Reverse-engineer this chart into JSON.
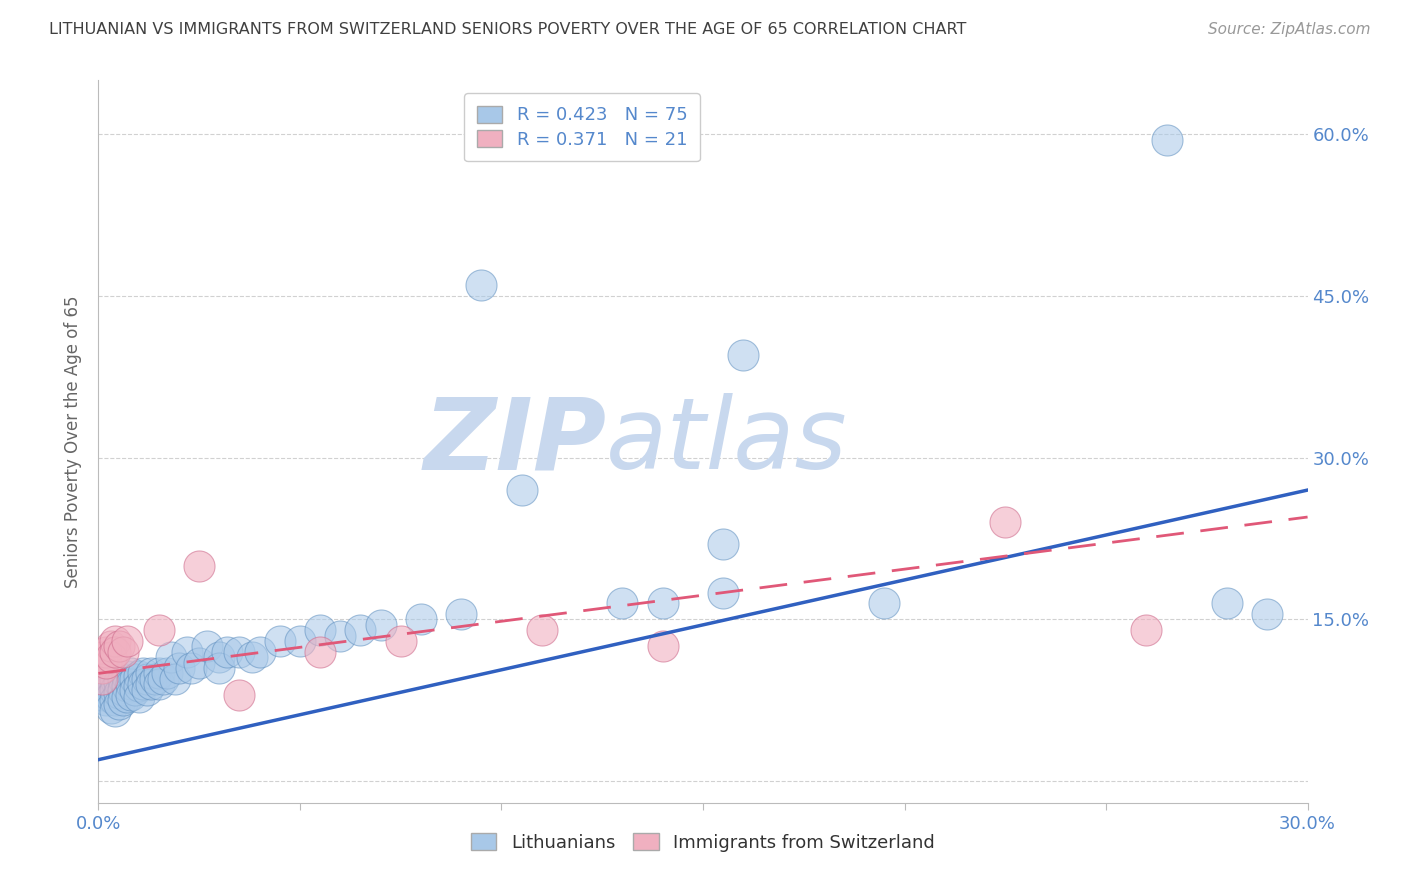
{
  "title": "LITHUANIAN VS IMMIGRANTS FROM SWITZERLAND SENIORS POVERTY OVER THE AGE OF 65 CORRELATION CHART",
  "source_text": "Source: ZipAtlas.com",
  "ylabel": "Seniors Poverty Over the Age of 65",
  "xlim": [
    0.0,
    0.3
  ],
  "ylim": [
    -0.02,
    0.65
  ],
  "background_color": "#ffffff",
  "watermark": "ZIPatlas",
  "watermark_color_zip": "#c8d8ee",
  "watermark_color_atlas": "#c8d8ee",
  "legend_r1": "R = 0.423",
  "legend_n1": "N = 75",
  "legend_r2": "R = 0.371",
  "legend_n2": "N = 21",
  "color_blue": "#a8c8e8",
  "color_pink": "#f0b0c0",
  "color_blue_line": "#3060c0",
  "color_pink_line": "#e05878",
  "color_tick": "#5588cc",
  "color_title": "#404040",
  "color_source": "#999999",
  "blue_line_x0": 0.0,
  "blue_line_y0": 0.02,
  "blue_line_x1": 0.3,
  "blue_line_y1": 0.27,
  "pink_line_x0": 0.0,
  "pink_line_y0": 0.1,
  "pink_line_x1": 0.3,
  "pink_line_y1": 0.245,
  "blue_x": [
    0.001,
    0.001,
    0.001,
    0.002,
    0.002,
    0.002,
    0.002,
    0.003,
    0.003,
    0.003,
    0.003,
    0.004,
    0.004,
    0.004,
    0.004,
    0.005,
    0.005,
    0.005,
    0.006,
    0.006,
    0.006,
    0.007,
    0.007,
    0.007,
    0.008,
    0.008,
    0.008,
    0.009,
    0.009,
    0.01,
    0.01,
    0.01,
    0.011,
    0.011,
    0.012,
    0.012,
    0.013,
    0.013,
    0.014,
    0.015,
    0.015,
    0.016,
    0.017,
    0.018,
    0.019,
    0.02,
    0.022,
    0.023,
    0.025,
    0.027,
    0.03,
    0.03,
    0.032,
    0.035,
    0.038,
    0.04,
    0.045,
    0.05,
    0.055,
    0.06,
    0.065,
    0.07,
    0.08,
    0.09,
    0.095,
    0.105,
    0.13,
    0.14,
    0.155,
    0.16,
    0.195,
    0.265,
    0.28,
    0.155,
    0.29
  ],
  "blue_y": [
    0.095,
    0.085,
    0.08,
    0.1,
    0.09,
    0.082,
    0.075,
    0.098,
    0.088,
    0.078,
    0.068,
    0.095,
    0.085,
    0.075,
    0.065,
    0.092,
    0.082,
    0.072,
    0.095,
    0.085,
    0.075,
    0.098,
    0.088,
    0.078,
    0.1,
    0.09,
    0.08,
    0.095,
    0.085,
    0.098,
    0.088,
    0.078,
    0.1,
    0.09,
    0.095,
    0.085,
    0.1,
    0.09,
    0.095,
    0.1,
    0.09,
    0.095,
    0.1,
    0.115,
    0.095,
    0.105,
    0.12,
    0.105,
    0.11,
    0.125,
    0.115,
    0.105,
    0.12,
    0.12,
    0.115,
    0.12,
    0.13,
    0.13,
    0.14,
    0.135,
    0.14,
    0.145,
    0.15,
    0.155,
    0.46,
    0.27,
    0.165,
    0.165,
    0.175,
    0.395,
    0.165,
    0.595,
    0.165,
    0.22,
    0.155
  ],
  "pink_x": [
    0.001,
    0.001,
    0.001,
    0.002,
    0.002,
    0.003,
    0.003,
    0.004,
    0.004,
    0.005,
    0.006,
    0.007,
    0.015,
    0.025,
    0.035,
    0.055,
    0.075,
    0.11,
    0.14,
    0.225,
    0.26
  ],
  "pink_y": [
    0.115,
    0.105,
    0.095,
    0.12,
    0.11,
    0.125,
    0.115,
    0.13,
    0.12,
    0.125,
    0.12,
    0.13,
    0.14,
    0.2,
    0.08,
    0.12,
    0.13,
    0.14,
    0.125,
    0.24,
    0.14
  ]
}
